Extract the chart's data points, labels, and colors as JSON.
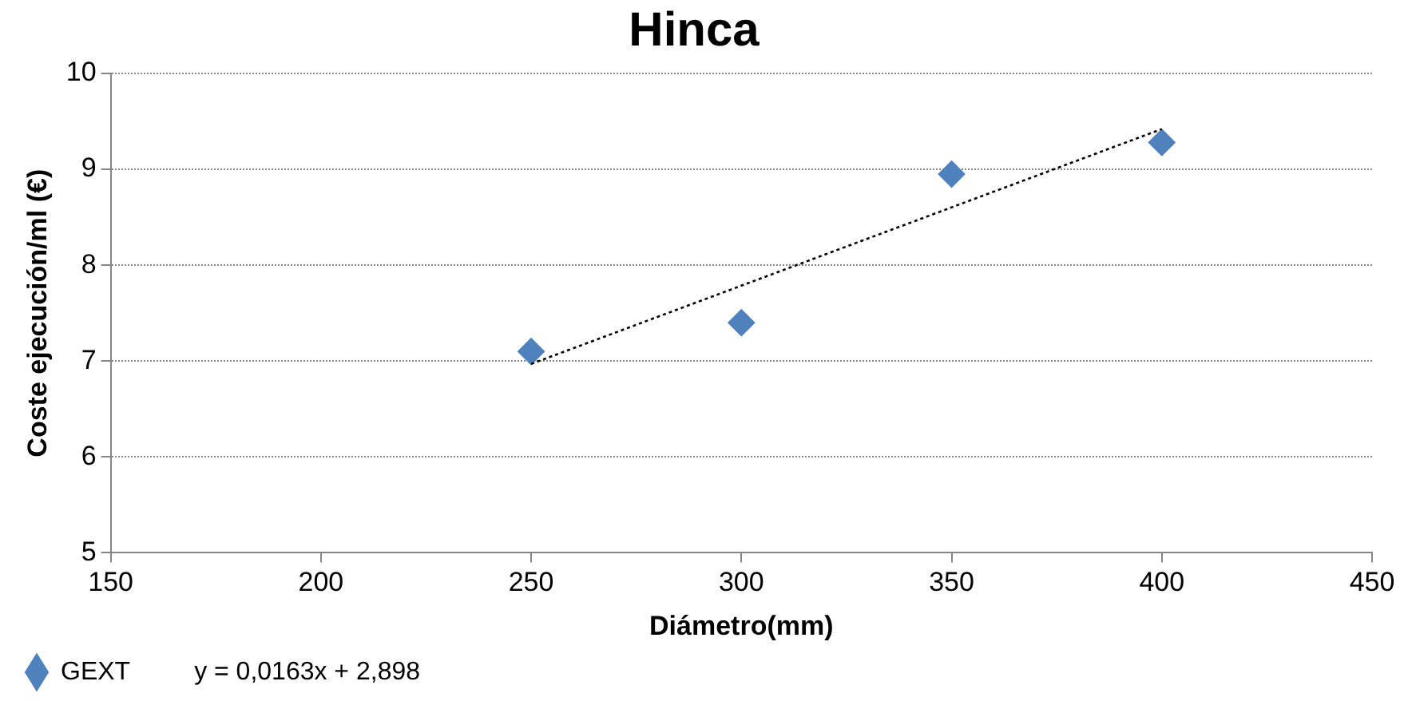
{
  "chart_data": {
    "type": "scatter",
    "title": "Hinca",
    "xlabel": "Diámetro(mm)",
    "ylabel": "Coste ejecución/ml (€)",
    "xlim": [
      150,
      450
    ],
    "xticks": [
      150,
      200,
      250,
      300,
      350,
      400,
      450
    ],
    "ylim": [
      5,
      10
    ],
    "yticks": [
      5,
      6,
      7,
      8,
      9,
      10
    ],
    "grid": "y",
    "legend": "bottom",
    "marker": "diamond",
    "series": [
      {
        "name": "GEXT",
        "color": "#4f81bd",
        "x": [
          250,
          300,
          350,
          400
        ],
        "values": [
          7.1,
          7.4,
          8.95,
          9.28
        ]
      },
      {
        "type": "line",
        "color": "#000000",
        "line_style": "dotted",
        "marker": "none",
        "x": [
          250,
          400
        ],
        "values": [
          6.97,
          9.42
        ]
      }
    ],
    "annotations": [
      "y = 0,0163x + 2,898"
    ]
  }
}
